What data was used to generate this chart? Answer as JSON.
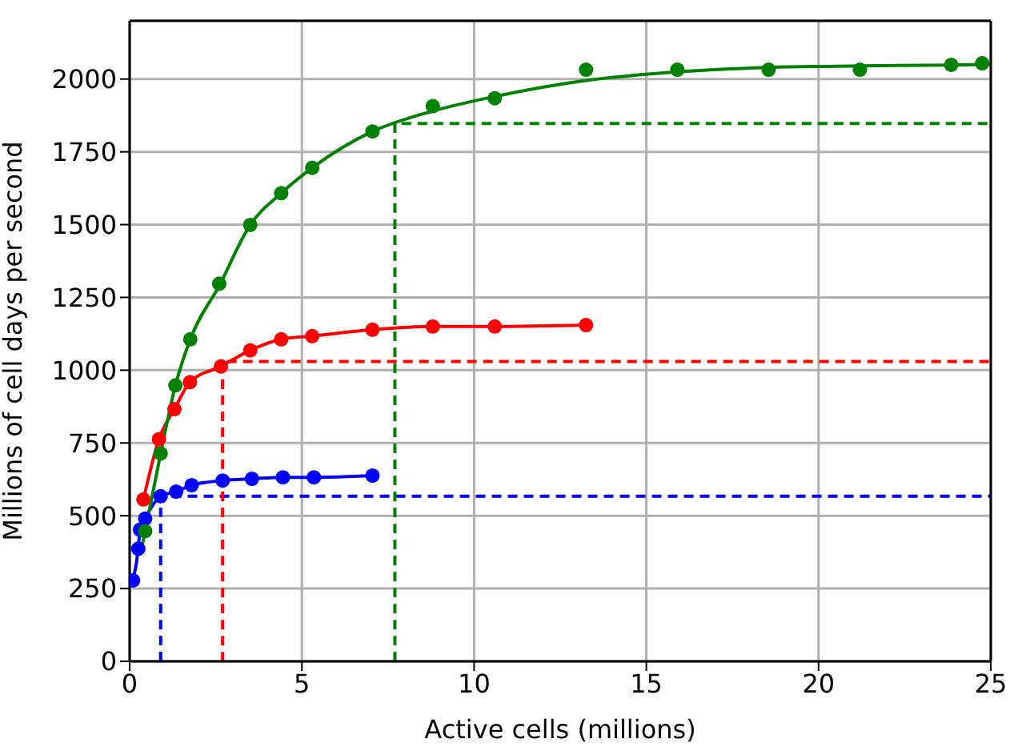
{
  "chart_data": {
    "type": "scatter",
    "xlabel": "Active cells (millions)",
    "ylabel": "Millions of cell days per second",
    "xlim": [
      0,
      25
    ],
    "ylim": [
      0,
      2200
    ],
    "xticks": [
      0,
      5,
      10,
      15,
      20,
      25
    ],
    "yticks": [
      0,
      250,
      500,
      750,
      1000,
      1250,
      1500,
      1750,
      2000
    ],
    "grid": true,
    "legend": false,
    "series": [
      {
        "marker": "circle",
        "color": "#0000ff",
        "x": [
          0.1,
          0.25,
          0.3,
          0.45,
          0.9,
          1.35,
          1.8,
          2.7,
          3.55,
          4.45,
          5.35,
          7.05
        ],
        "values": [
          278,
          387,
          452,
          490,
          567,
          583,
          605,
          621,
          627,
          632,
          632,
          638
        ]
      },
      {
        "marker": "circle",
        "color": "#ff0000",
        "x": [
          0.4,
          0.85,
          1.3,
          1.75,
          2.65,
          3.5,
          4.4,
          5.3,
          7.05,
          8.8,
          10.6,
          13.25
        ],
        "values": [
          556,
          763,
          866,
          959,
          1013,
          1068,
          1106,
          1117,
          1139,
          1150,
          1150,
          1155
        ]
      },
      {
        "marker": "circle",
        "color": "#008000",
        "x": [
          0.45,
          0.9,
          1.33,
          1.76,
          2.6,
          3.5,
          4.4,
          5.3,
          7.05,
          8.8,
          10.6,
          13.25,
          15.9,
          18.55,
          21.2,
          23.85,
          24.75
        ],
        "values": [
          447,
          714,
          948,
          1106,
          1297,
          1499,
          1608,
          1695,
          1820,
          1907,
          1934,
          2032,
          2032,
          2032,
          2032,
          2049,
          2054
        ]
      },
      {
        "type": "line",
        "marker": "none",
        "line_style": "solid",
        "color": "#0000ff",
        "x": [
          0.1,
          0.25,
          0.3,
          0.45,
          0.9,
          1.35,
          1.8,
          2.7,
          3.55,
          4.45,
          5.35,
          7.05
        ],
        "values": [
          278,
          387,
          452,
          490,
          567,
          583,
          605,
          621,
          627,
          632,
          632,
          638
        ]
      },
      {
        "type": "line",
        "marker": "none",
        "line_style": "solid",
        "color": "#ff0000",
        "x": [
          0.4,
          0.85,
          1.3,
          1.75,
          2.65,
          3.5,
          4.4,
          5.3,
          7.05,
          8.8,
          10.6,
          13.25
        ],
        "values": [
          556,
          763,
          866,
          959,
          1013,
          1068,
          1106,
          1117,
          1139,
          1150,
          1150,
          1155
        ]
      },
      {
        "type": "line",
        "marker": "none",
        "line_style": "solid",
        "color": "#008000",
        "x": [
          0.35,
          0.45,
          0.9,
          1.33,
          1.76,
          2.6,
          3.5,
          4.4,
          5.3,
          7.05,
          8.8,
          10.6,
          13.25,
          15.9,
          18.55,
          21.2,
          23.85,
          25
        ],
        "values": [
          390,
          447,
          714,
          948,
          1106,
          1290,
          1499,
          1608,
          1695,
          1820,
          1890,
          1940,
          1995,
          2025,
          2040,
          2045,
          2048,
          2050
        ]
      },
      {
        "type": "line",
        "marker": "none",
        "line_style": "dashed",
        "color": "#0000ff",
        "x": [
          0.9,
          0.9,
          25
        ],
        "values": [
          0,
          567,
          567
        ]
      },
      {
        "type": "line",
        "marker": "none",
        "line_style": "dashed",
        "color": "#ff0000",
        "x": [
          2.7,
          2.7,
          25
        ],
        "values": [
          0,
          1030,
          1030
        ]
      },
      {
        "type": "line",
        "marker": "none",
        "line_style": "dashed",
        "color": "#008000",
        "x": [
          7.7,
          7.7,
          25
        ],
        "values": [
          0,
          1847,
          1847
        ]
      }
    ]
  }
}
